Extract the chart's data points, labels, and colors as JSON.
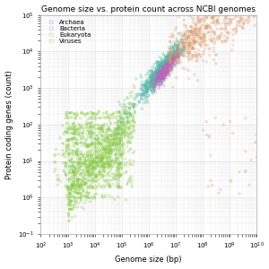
{
  "title": "Genome size vs. protein count across NCBI genomes",
  "xlabel": "Genome size (bp)",
  "ylabel": "Protein coding genes (count)",
  "groups": {
    "Archaea": {
      "color": "#bb66bb",
      "legend_order": 0
    },
    "Bacteria": {
      "color": "#55bbaa",
      "legend_order": 1
    },
    "Eukaryota": {
      "color": "#dd9966",
      "legend_order": 2
    },
    "Viruses": {
      "color": "#88cc44",
      "legend_order": 3
    }
  },
  "background_color": "#ffffff",
  "grid_color": "#dddddd",
  "title_fontsize": 6.5,
  "label_fontsize": 6,
  "tick_fontsize": 5,
  "legend_fontsize": 5,
  "marker_size": 2.5,
  "alpha": 0.55
}
